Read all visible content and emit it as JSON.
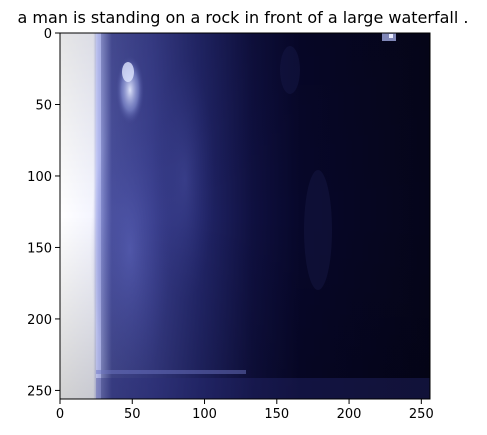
{
  "figure": {
    "title": "a man is standing on a rock in front of a large waterfall ."
  },
  "image_axes": {
    "x_ticks": [
      "0",
      "50",
      "100",
      "150",
      "200",
      "250"
    ],
    "y_ticks": [
      "0",
      "50",
      "100",
      "150",
      "200",
      "250"
    ],
    "x_range": [
      0,
      256
    ],
    "y_range": [
      0,
      256
    ],
    "colors": {
      "deep_navy": "#05051a",
      "mid_blue": "#3a3f8e",
      "bright_edge": "#e9ebff",
      "highlight": "#c4cdf5"
    }
  }
}
